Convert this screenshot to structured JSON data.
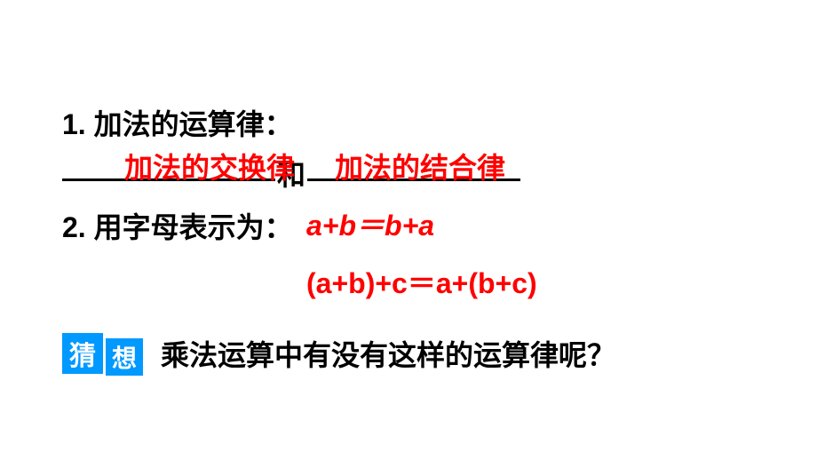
{
  "colors": {
    "background": "#ffffff",
    "text": "#000000",
    "answer": "#ff0000",
    "badge_bg": "#0099ff",
    "badge_text": "#ffffff"
  },
  "typography": {
    "body_fontsize": 32,
    "body_weight": "bold",
    "badge_fontsize1": 30,
    "badge_fontsize2": 28
  },
  "line1": "1. 加法的运算律：",
  "blank_connector": "和",
  "answer1": "加法的交换律",
  "answer2": "加法的结合律",
  "line3_label": "2. 用字母表示为：",
  "formula1": "a+b＝b+a",
  "formula2": "(a+b)+c＝a+(b+c)",
  "badge": {
    "char1": "猜",
    "char2": "想"
  },
  "question": "乘法运算中有没有这样的运算律呢？"
}
